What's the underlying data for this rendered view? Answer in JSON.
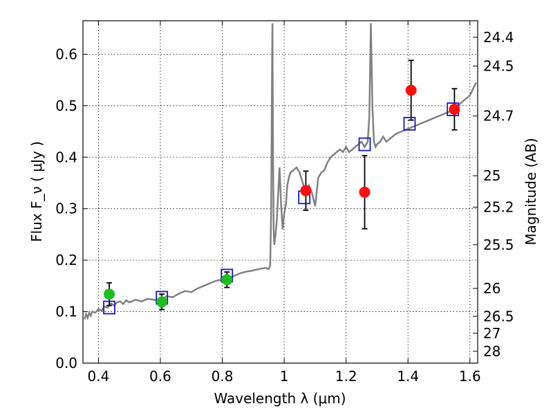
{
  "chart_data": {
    "type": "scatter",
    "xlabel": "Wavelength  λ (μm)",
    "ylabel": "Flux  F_ν  ( μJy )",
    "ylabel_right": "Magnitude (AB)",
    "xlim": [
      0.35,
      1.625
    ],
    "ylim": [
      0.0,
      0.665
    ],
    "grid": true,
    "x_ticks": [
      0.4,
      0.6,
      0.8,
      1.0,
      1.2,
      1.4,
      1.6
    ],
    "x_tick_labels": [
      "0.4",
      "0.6",
      "0.8",
      "1",
      "1.2",
      "1.4",
      "1.6"
    ],
    "y_ticks": [
      0.0,
      0.1,
      0.2,
      0.3,
      0.4,
      0.5,
      0.6
    ],
    "y_tick_labels": [
      "0.0",
      "0.1",
      "0.2",
      "0.3",
      "0.4",
      "0.5",
      "0.6"
    ],
    "right_ticks": [
      {
        "label": "24.4",
        "flux": 0.633
      },
      {
        "label": "24.5",
        "flux": 0.577
      },
      {
        "label": "24.7",
        "flux": 0.48
      },
      {
        "label": "25",
        "flux": 0.364
      },
      {
        "label": "25.2",
        "flux": 0.303
      },
      {
        "label": "25.5",
        "flux": 0.23
      },
      {
        "label": "26",
        "flux": 0.145
      },
      {
        "label": "26.5",
        "flux": 0.091
      },
      {
        "label": "27",
        "flux": 0.058
      },
      {
        "label": "28",
        "flux": 0.023
      }
    ],
    "spectrum": {
      "color": "#808080",
      "x": [
        0.355,
        0.36,
        0.365,
        0.37,
        0.375,
        0.38,
        0.39,
        0.4,
        0.41,
        0.42,
        0.43,
        0.44,
        0.45,
        0.46,
        0.47,
        0.48,
        0.49,
        0.5,
        0.52,
        0.54,
        0.56,
        0.58,
        0.6,
        0.61,
        0.62,
        0.64,
        0.66,
        0.68,
        0.7,
        0.72,
        0.74,
        0.76,
        0.78,
        0.8,
        0.82,
        0.84,
        0.86,
        0.88,
        0.9,
        0.92,
        0.94,
        0.95,
        0.955,
        0.958,
        0.96,
        0.962,
        0.964,
        0.966,
        0.968,
        0.972,
        0.976,
        0.98,
        0.985,
        0.99,
        0.995,
        1.0,
        1.003,
        1.006,
        1.01,
        1.015,
        1.02,
        1.03,
        1.04,
        1.05,
        1.06,
        1.07,
        1.08,
        1.09,
        1.1,
        1.11,
        1.12,
        1.13,
        1.14,
        1.15,
        1.16,
        1.17,
        1.18,
        1.19,
        1.2,
        1.21,
        1.22,
        1.23,
        1.24,
        1.25,
        1.26,
        1.27,
        1.275,
        1.28,
        1.285,
        1.29,
        1.295,
        1.3,
        1.31,
        1.32,
        1.33,
        1.34,
        1.36,
        1.38,
        1.4,
        1.42,
        1.44,
        1.46,
        1.48,
        1.5,
        1.52,
        1.54,
        1.56,
        1.58,
        1.6,
        1.62
      ],
      "y": [
        0.085,
        0.095,
        0.088,
        0.098,
        0.092,
        0.1,
        0.098,
        0.105,
        0.102,
        0.11,
        0.108,
        0.116,
        0.112,
        0.118,
        0.12,
        0.115,
        0.122,
        0.118,
        0.123,
        0.12,
        0.125,
        0.123,
        0.12,
        0.125,
        0.13,
        0.128,
        0.135,
        0.14,
        0.138,
        0.145,
        0.15,
        0.155,
        0.16,
        0.162,
        0.165,
        0.17,
        0.175,
        0.178,
        0.18,
        0.183,
        0.185,
        0.183,
        0.19,
        0.3,
        0.5,
        0.66,
        0.4,
        0.26,
        0.23,
        0.25,
        0.275,
        0.32,
        0.38,
        0.31,
        0.26,
        0.29,
        0.3,
        0.31,
        0.345,
        0.36,
        0.37,
        0.375,
        0.38,
        0.37,
        0.35,
        0.33,
        0.345,
        0.33,
        0.305,
        0.36,
        0.37,
        0.375,
        0.39,
        0.4,
        0.405,
        0.41,
        0.415,
        0.41,
        0.42,
        0.41,
        0.415,
        0.42,
        0.425,
        0.43,
        0.42,
        0.43,
        0.48,
        0.66,
        0.5,
        0.43,
        0.42,
        0.425,
        0.43,
        0.44,
        0.43,
        0.435,
        0.445,
        0.45,
        0.455,
        0.46,
        0.465,
        0.47,
        0.475,
        0.48,
        0.485,
        0.49,
        0.5,
        0.51,
        0.52,
        0.545
      ]
    },
    "model_points": {
      "marker": "open-square",
      "color": "#1414c8",
      "x": [
        0.435,
        0.605,
        0.815,
        1.065,
        1.26,
        1.405,
        1.545
      ],
      "y": [
        0.108,
        0.127,
        0.17,
        0.322,
        0.425,
        0.465,
        0.493
      ]
    },
    "observed_optical": {
      "marker": "filled-circle",
      "color": "#1fbf1f",
      "x": [
        0.435,
        0.605,
        0.815
      ],
      "y": [
        0.134,
        0.119,
        0.162
      ],
      "err": [
        0.022,
        0.015,
        0.015
      ]
    },
    "observed_nir": {
      "marker": "filled-circle",
      "color": "#ff0d0d",
      "x": [
        1.07,
        1.26,
        1.41,
        1.55
      ],
      "y": [
        0.335,
        0.332,
        0.53,
        0.493
      ],
      "err": [
        0.038,
        0.071,
        0.058,
        0.04
      ]
    }
  }
}
